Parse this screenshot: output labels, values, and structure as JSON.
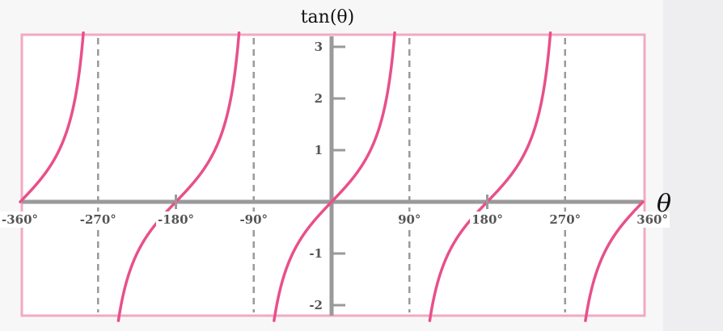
{
  "chart_data": {
    "type": "line",
    "title": "tan(θ)",
    "xlabel": "θ",
    "ylabel": "",
    "xlim": [
      -360,
      360
    ],
    "ylim": [
      -2.2,
      3.2
    ],
    "x_ticks": [
      {
        "value": -360,
        "label": "-360°"
      },
      {
        "value": -270,
        "label": "-270°"
      },
      {
        "value": -180,
        "label": "-180°"
      },
      {
        "value": -90,
        "label": "-90°"
      },
      {
        "value": 90,
        "label": "90°"
      },
      {
        "value": 180,
        "label": "180°"
      },
      {
        "value": 270,
        "label": "270°"
      },
      {
        "value": 360,
        "label": "360°"
      }
    ],
    "y_ticks": [
      {
        "value": 3,
        "label": "3"
      },
      {
        "value": 2,
        "label": "2"
      },
      {
        "value": 1,
        "label": "1"
      },
      {
        "value": -1,
        "label": "-1"
      },
      {
        "value": -2,
        "label": "-2"
      }
    ],
    "asymptotes": [
      -270,
      -90,
      90,
      270
    ],
    "series": [
      {
        "function": "tan",
        "color": "#e8508a"
      }
    ],
    "colors": {
      "curve": "#e8508a",
      "frame": "#f2a9c2",
      "axis": "#9a9a9a",
      "asymptote": "#9a9a9a",
      "plot_bg": "#ffffff",
      "page_bg": "#f7f7f8"
    }
  }
}
